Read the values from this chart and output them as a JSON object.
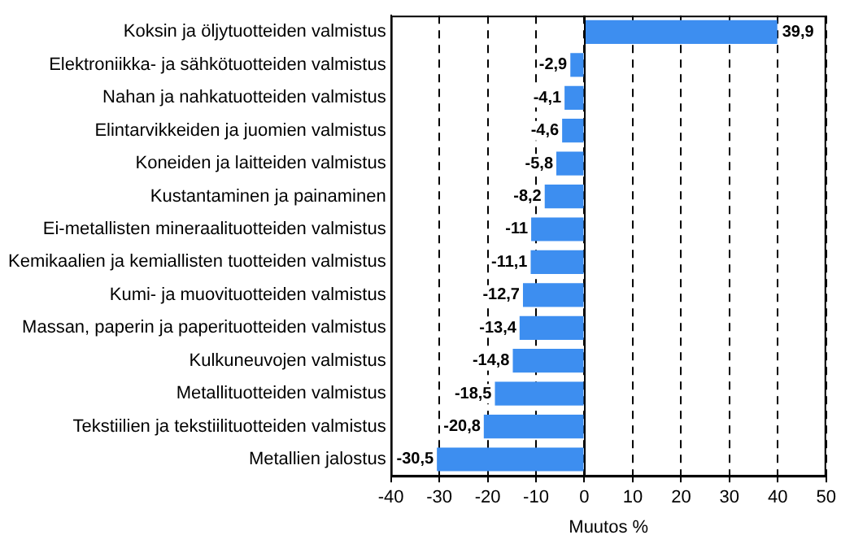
{
  "chart_data": {
    "type": "bar",
    "orientation": "horizontal",
    "xlabel": "Muutos %",
    "categories": [
      "Koksin ja öljytuotteiden valmistus",
      "Elektroniikka- ja sähkötuotteiden valmistus",
      "Nahan ja nahkatuotteiden valmistus",
      "Elintarvikkeiden ja juomien valmistus",
      "Koneiden ja laitteiden valmistus",
      "Kustantaminen ja painaminen",
      "Ei-metallisten mineraalituotteiden valmistus",
      "Kemikaalien ja kemiallisten tuotteiden valmistus",
      "Kumi- ja muovituotteiden valmistus",
      "Massan, paperin ja paperituotteiden valmistus",
      "Kulkuneuvojen valmistus",
      "Metallituotteiden valmistus",
      "Tekstiilien ja tekstiilituotteiden valmistus",
      "Metallien jalostus"
    ],
    "values": [
      39.9,
      -2.9,
      -4.1,
      -4.6,
      -5.8,
      -8.2,
      -11,
      -11.1,
      -12.7,
      -13.4,
      -14.8,
      -18.5,
      -20.8,
      -30.5
    ],
    "value_labels": [
      "39,9",
      "-2,9",
      "-4,1",
      "-4,6",
      "-5,8",
      "-8,2",
      "-11",
      "-11,1",
      "-12,7",
      "-13,4",
      "-14,8",
      "-18,5",
      "-20,8",
      "-30,5"
    ],
    "color": "#3d8ef0",
    "xlim": [
      -40,
      50
    ],
    "xticks": [
      -40,
      -30,
      -20,
      -10,
      0,
      10,
      20,
      30,
      40,
      50
    ],
    "grid": "x",
    "legend": false
  }
}
